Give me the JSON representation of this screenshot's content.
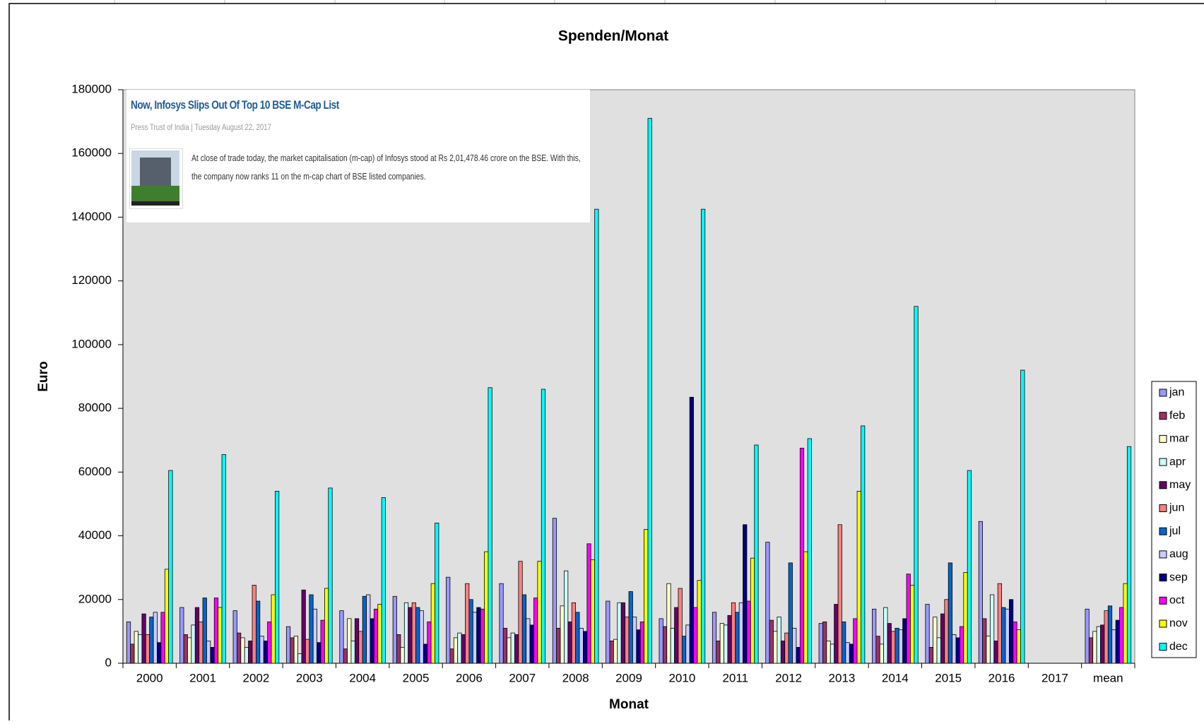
{
  "chart_data": {
    "type": "bar",
    "title": "Spenden/Monat",
    "xlabel": "Monat",
    "ylabel": "Euro",
    "categories": [
      "2000",
      "2001",
      "2002",
      "2003",
      "2004",
      "2005",
      "2006",
      "2007",
      "2008",
      "2009",
      "2010",
      "2011",
      "2012",
      "2013",
      "2014",
      "2015",
      "2016",
      "2017",
      "mean"
    ],
    "ylim": [
      0,
      180000
    ],
    "yticks": [
      0,
      20000,
      40000,
      60000,
      80000,
      100000,
      120000,
      140000,
      160000,
      180000
    ],
    "grid": false,
    "legend": "right",
    "series": [
      {
        "name": "jan",
        "color": "#9999ff",
        "values": [
          13000,
          17500,
          16500,
          11500,
          16500,
          21000,
          27000,
          25000,
          45500,
          19500,
          14000,
          16000,
          38000,
          12500,
          17000,
          18500,
          44500,
          null,
          17000
        ]
      },
      {
        "name": "feb",
        "color": "#993366",
        "values": [
          6000,
          9000,
          9500,
          8000,
          4500,
          9000,
          4500,
          11000,
          11000,
          7000,
          11500,
          7000,
          13500,
          13000,
          8500,
          5000,
          14000,
          null,
          8000
        ]
      },
      {
        "name": "mar",
        "color": "#ffffcc",
        "values": [
          10000,
          8000,
          8000,
          8500,
          14000,
          5000,
          8000,
          8000,
          18000,
          7500,
          25000,
          12500,
          10000,
          7000,
          6000,
          14500,
          8500,
          null,
          10000
        ]
      },
      {
        "name": "apr",
        "color": "#ccffff",
        "values": [
          9000,
          12000,
          5000,
          3000,
          7000,
          19000,
          9500,
          9500,
          29000,
          19000,
          11000,
          12000,
          14500,
          6000,
          17500,
          8000,
          21500,
          null,
          11500
        ]
      },
      {
        "name": "may",
        "color": "#660066",
        "values": [
          15500,
          17500,
          7000,
          23000,
          14000,
          17500,
          9000,
          9000,
          13000,
          19000,
          17500,
          15000,
          7000,
          18500,
          12500,
          15500,
          7000,
          null,
          12000
        ]
      },
      {
        "name": "jun",
        "color": "#ff8080",
        "values": [
          9000,
          13000,
          24500,
          7500,
          10000,
          19000,
          25000,
          32000,
          19000,
          14500,
          23500,
          19000,
          9500,
          43500,
          10000,
          20000,
          25000,
          null,
          16500
        ]
      },
      {
        "name": "jul",
        "color": "#0066cc",
        "values": [
          14500,
          20500,
          19500,
          21500,
          21000,
          17500,
          20000,
          21500,
          16000,
          22500,
          8500,
          16000,
          31500,
          13000,
          11000,
          31500,
          17500,
          null,
          18000
        ]
      },
      {
        "name": "aug",
        "color": "#ccccff",
        "values": [
          16000,
          7000,
          8500,
          17000,
          21500,
          16500,
          16000,
          14000,
          11000,
          14500,
          12000,
          19000,
          11000,
          6500,
          10500,
          9000,
          17000,
          null,
          10500
        ]
      },
      {
        "name": "sep",
        "color": "#000080",
        "values": [
          6500,
          5000,
          7000,
          6500,
          14000,
          6000,
          17500,
          12000,
          10000,
          10500,
          83500,
          43500,
          5000,
          6000,
          14000,
          8000,
          20000,
          null,
          13500
        ]
      },
      {
        "name": "oct",
        "color": "#ff00ff",
        "values": [
          16000,
          20500,
          13000,
          13500,
          17000,
          13000,
          17000,
          20500,
          37500,
          13000,
          17500,
          19500,
          67500,
          14000,
          28000,
          11500,
          13000,
          null,
          17500
        ]
      },
      {
        "name": "nov",
        "color": "#ffff00",
        "values": [
          29500,
          17500,
          21500,
          23500,
          18500,
          25000,
          35000,
          32000,
          32500,
          42000,
          26000,
          33000,
          35000,
          54000,
          24500,
          28500,
          10500,
          null,
          25000
        ]
      },
      {
        "name": "dec",
        "color": "#00ffff",
        "values": [
          60500,
          65500,
          54000,
          55000,
          52000,
          44000,
          86500,
          86000,
          142500,
          171000,
          142500,
          68500,
          70500,
          74500,
          112000,
          60500,
          92000,
          null,
          68000
        ]
      }
    ]
  },
  "overlay": {
    "headline": "Now, Infosys Slips Out Of Top 10 BSE M-Cap List",
    "byline": "Press Trust of India | Tuesday August 22, 2017",
    "body": "At close of trade today, the market capitalisation (m-cap) of Infosys stood at Rs 2,01,478.46 crore on the BSE. With this, the company now ranks 11 on the m-cap chart of BSE listed companies."
  }
}
